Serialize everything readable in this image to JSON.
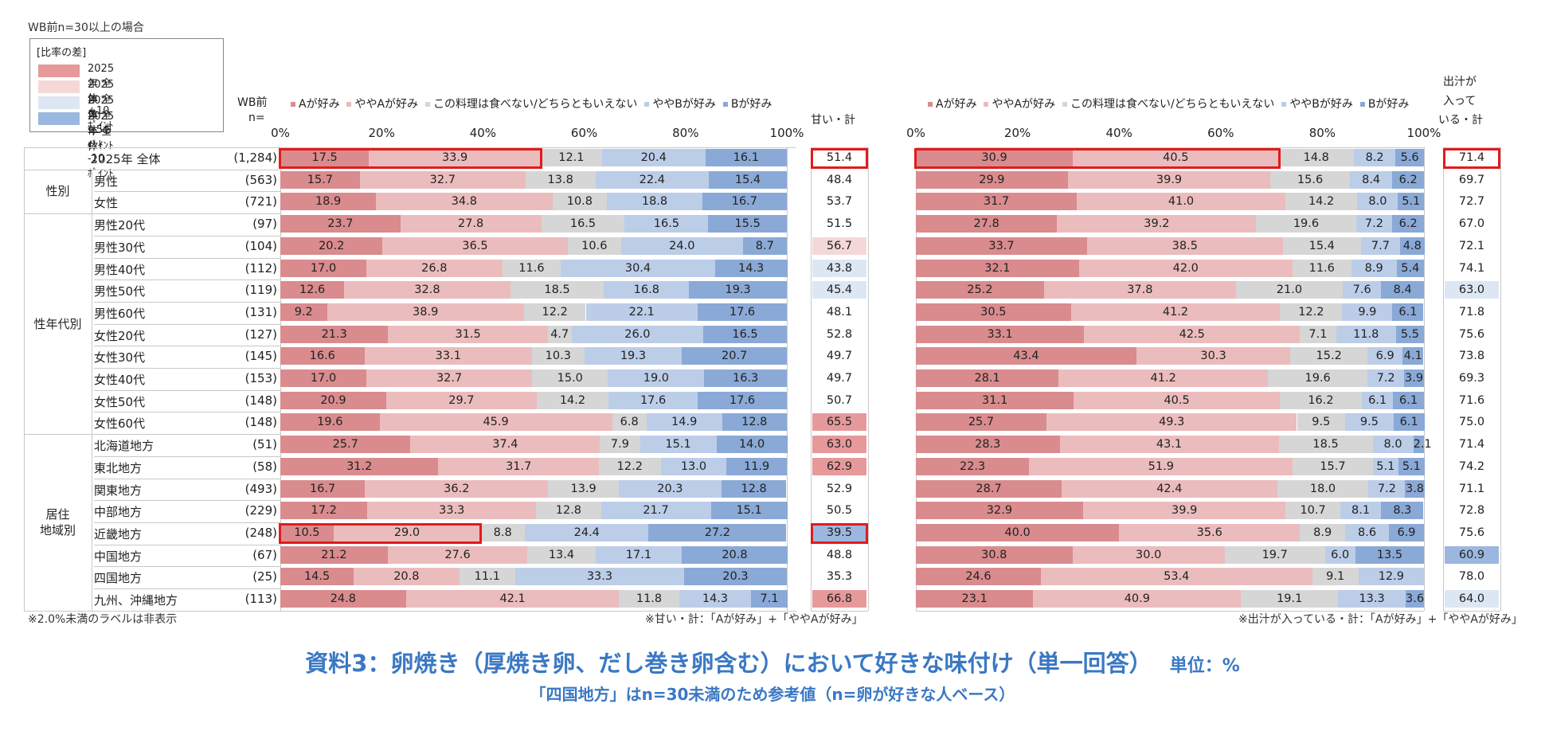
{
  "top_note": "WB前n=30以上の場合",
  "legend": {
    "title": "[比率の差]",
    "items": [
      {
        "label": "2025年 全体 +10ﾎﾟｲﾝﾄ",
        "color": "#e6999b"
      },
      {
        "label": "2025年 全体 +5ﾎﾟｲﾝﾄ",
        "color": "#f4d8d8"
      },
      {
        "label": "2025年 全体 -5ﾎﾟｲﾝﾄ",
        "color": "#dde7f3"
      },
      {
        "label": "2025年 全体 -10ﾎﾟｲﾝﾄ",
        "color": "#9bb7e0"
      }
    ]
  },
  "headers": {
    "n_label_1": "WB前",
    "n_label_2": "n=",
    "sweet_total": "甘い・計",
    "dashi_total_1": "出汁が",
    "dashi_total_2": "入って",
    "dashi_total_3": "いる・計",
    "ticks": [
      "0%",
      "20%",
      "40%",
      "60%",
      "80%",
      "100%"
    ]
  },
  "colors": {
    "A": "#d98b8e",
    "yA": "#ebbcbd",
    "mid": "#d6d6d6",
    "yB": "#bccde8",
    "B": "#8aa9d6",
    "highlight_red": "#e21b1b",
    "title_blue": "#3a78c4"
  },
  "groups": [
    {
      "label": "",
      "rows": 1
    },
    {
      "label": "性別",
      "rows": 2
    },
    {
      "label": "性年代別",
      "rows": 10
    },
    {
      "label": "居住\n地域別",
      "rows": 8
    }
  ],
  "chart_data": [
    {
      "type": "bar",
      "stacked": true,
      "orientation": "horizontal",
      "xlim": [
        0,
        100
      ],
      "categories": [
        "Aが好み",
        "ややAが好み",
        "この料理は食べない/どちらともいえない",
        "ややBが好み",
        "Bが好み"
      ],
      "rows": [
        {
          "label": "2025年 全体",
          "n": "(1,284)",
          "values": [
            17.5,
            33.9,
            12.1,
            20.4,
            16.1
          ],
          "total": "51.4",
          "total_shade": "none"
        },
        {
          "label": "男性",
          "n": "(563)",
          "values": [
            15.7,
            32.7,
            13.8,
            22.4,
            15.4
          ],
          "total": "48.4",
          "total_shade": "none"
        },
        {
          "label": "女性",
          "n": "(721)",
          "values": [
            18.9,
            34.8,
            10.8,
            18.8,
            16.7
          ],
          "total": "53.7",
          "total_shade": "none"
        },
        {
          "label": "男性20代",
          "n": "(97)",
          "values": [
            23.7,
            27.8,
            16.5,
            16.5,
            15.5
          ],
          "total": "51.5",
          "total_shade": "none"
        },
        {
          "label": "男性30代",
          "n": "(104)",
          "values": [
            20.2,
            36.5,
            10.6,
            24.0,
            8.7
          ],
          "total": "56.7",
          "total_shade": "plus5"
        },
        {
          "label": "男性40代",
          "n": "(112)",
          "values": [
            17.0,
            26.8,
            11.6,
            30.4,
            14.3
          ],
          "total": "43.8",
          "total_shade": "minus5"
        },
        {
          "label": "男性50代",
          "n": "(119)",
          "values": [
            12.6,
            32.8,
            18.5,
            16.8,
            19.3
          ],
          "total": "45.4",
          "total_shade": "minus5"
        },
        {
          "label": "男性60代",
          "n": "(131)",
          "values": [
            9.2,
            38.9,
            12.2,
            22.1,
            17.6
          ],
          "total": "48.1",
          "total_shade": "none"
        },
        {
          "label": "女性20代",
          "n": "(127)",
          "values": [
            21.3,
            31.5,
            4.7,
            26.0,
            16.5
          ],
          "total": "52.8",
          "total_shade": "none"
        },
        {
          "label": "女性30代",
          "n": "(145)",
          "values": [
            16.6,
            33.1,
            10.3,
            19.3,
            20.7
          ],
          "total": "49.7",
          "total_shade": "none"
        },
        {
          "label": "女性40代",
          "n": "(153)",
          "values": [
            17.0,
            32.7,
            15.0,
            19.0,
            16.3
          ],
          "total": "49.7",
          "total_shade": "none"
        },
        {
          "label": "女性50代",
          "n": "(148)",
          "values": [
            20.9,
            29.7,
            14.2,
            17.6,
            17.6
          ],
          "total": "50.7",
          "total_shade": "none"
        },
        {
          "label": "女性60代",
          "n": "(148)",
          "values": [
            19.6,
            45.9,
            6.8,
            14.9,
            12.8
          ],
          "total": "65.5",
          "total_shade": "plus10"
        },
        {
          "label": "北海道地方",
          "n": "(51)",
          "values": [
            25.7,
            37.4,
            7.9,
            15.1,
            14.0
          ],
          "total": "63.0",
          "total_shade": "plus10"
        },
        {
          "label": "東北地方",
          "n": "(58)",
          "values": [
            31.2,
            31.7,
            12.2,
            13.0,
            11.9
          ],
          "total": "62.9",
          "total_shade": "plus10"
        },
        {
          "label": "関東地方",
          "n": "(493)",
          "values": [
            16.7,
            36.2,
            13.9,
            20.3,
            12.8
          ],
          "total": "52.9",
          "total_shade": "none"
        },
        {
          "label": "中部地方",
          "n": "(229)",
          "values": [
            17.2,
            33.3,
            12.8,
            21.7,
            15.1
          ],
          "total": "50.5",
          "total_shade": "none"
        },
        {
          "label": "近畿地方",
          "n": "(248)",
          "values": [
            10.5,
            29.0,
            8.8,
            24.4,
            27.2
          ],
          "total": "39.5",
          "total_shade": "minus10"
        },
        {
          "label": "中国地方",
          "n": "(67)",
          "values": [
            21.2,
            27.6,
            13.4,
            17.1,
            20.8
          ],
          "total": "48.8",
          "total_shade": "none"
        },
        {
          "label": "四国地方",
          "n": "(25)",
          "values": [
            14.5,
            20.8,
            11.1,
            33.3,
            20.3
          ],
          "total": "35.3",
          "total_shade": "none"
        },
        {
          "label": "九州、沖縄地方",
          "n": "(113)",
          "values": [
            24.8,
            42.1,
            11.8,
            14.3,
            7.1
          ],
          "total": "66.8",
          "total_shade": "plus10"
        }
      ],
      "highlighted_rows": [
        0,
        17
      ]
    },
    {
      "type": "bar",
      "stacked": true,
      "orientation": "horizontal",
      "xlim": [
        0,
        100
      ],
      "categories": [
        "Aが好み",
        "ややAが好み",
        "この料理は食べない/どちらともいえない",
        "ややBが好み",
        "Bが好み"
      ],
      "rows": [
        {
          "values": [
            30.9,
            40.5,
            14.8,
            8.2,
            5.6
          ],
          "total": "71.4",
          "total_shade": "none"
        },
        {
          "values": [
            29.9,
            39.9,
            15.6,
            8.4,
            6.2
          ],
          "total": "69.7",
          "total_shade": "none"
        },
        {
          "values": [
            31.7,
            41.0,
            14.2,
            8.0,
            5.1
          ],
          "total": "72.7",
          "total_shade": "none"
        },
        {
          "values": [
            27.8,
            39.2,
            19.6,
            7.2,
            6.2
          ],
          "total": "67.0",
          "total_shade": "none"
        },
        {
          "values": [
            33.7,
            38.5,
            15.4,
            7.7,
            4.8
          ],
          "total": "72.1",
          "total_shade": "none"
        },
        {
          "values": [
            32.1,
            42.0,
            11.6,
            8.9,
            5.4
          ],
          "total": "74.1",
          "total_shade": "none"
        },
        {
          "values": [
            25.2,
            37.8,
            21.0,
            7.6,
            8.4
          ],
          "total": "63.0",
          "total_shade": "minus5"
        },
        {
          "values": [
            30.5,
            41.2,
            12.2,
            9.9,
            6.1
          ],
          "total": "71.8",
          "total_shade": "none"
        },
        {
          "values": [
            33.1,
            42.5,
            7.1,
            11.8,
            5.5
          ],
          "total": "75.6",
          "total_shade": "none"
        },
        {
          "values": [
            43.4,
            30.3,
            15.2,
            6.9,
            4.1
          ],
          "total": "73.8",
          "total_shade": "none"
        },
        {
          "values": [
            28.1,
            41.2,
            19.6,
            7.2,
            3.9
          ],
          "total": "69.3",
          "total_shade": "none"
        },
        {
          "values": [
            31.1,
            40.5,
            16.2,
            6.1,
            6.1
          ],
          "total": "71.6",
          "total_shade": "none"
        },
        {
          "values": [
            25.7,
            49.3,
            9.5,
            9.5,
            6.1
          ],
          "total": "75.0",
          "total_shade": "none"
        },
        {
          "values": [
            28.3,
            43.1,
            18.5,
            8.0,
            2.1
          ],
          "total": "71.4",
          "total_shade": "none"
        },
        {
          "values": [
            22.3,
            51.9,
            15.7,
            5.1,
            5.1
          ],
          "total": "74.2",
          "total_shade": "none"
        },
        {
          "values": [
            28.7,
            42.4,
            18.0,
            7.2,
            3.8
          ],
          "total": "71.1",
          "total_shade": "none"
        },
        {
          "values": [
            32.9,
            39.9,
            10.7,
            8.1,
            8.3
          ],
          "total": "72.8",
          "total_shade": "none"
        },
        {
          "values": [
            40.0,
            35.6,
            8.9,
            8.6,
            6.9
          ],
          "total": "75.6",
          "total_shade": "none"
        },
        {
          "values": [
            30.8,
            30.0,
            19.7,
            6.0,
            13.5
          ],
          "total": "60.9",
          "total_shade": "minus10"
        },
        {
          "values": [
            24.6,
            53.4,
            9.1,
            12.9,
            0.0
          ],
          "total": "78.0",
          "total_shade": "none"
        },
        {
          "values": [
            23.1,
            40.9,
            19.1,
            13.3,
            3.6
          ],
          "total": "64.0",
          "total_shade": "minus5"
        }
      ],
      "highlighted_rows": [
        0
      ]
    }
  ],
  "footnotes": {
    "hidden_labels": "※2.0%未満のラベルは非表示",
    "sweet_def": "※甘い・計：「Aが好み」+「ややAが好み」",
    "dashi_def": "※出汁が入っている・計：「Aが好み」+「ややAが好み」"
  },
  "title": {
    "main": "資料3：卵焼き（厚焼き卵、だし巻き卵含む）において好きな味付け（単一回答）",
    "unit": "単位：%",
    "sub": "「四国地方」はn=30未満のため参考値（n=卵が好きな人ベース）"
  }
}
